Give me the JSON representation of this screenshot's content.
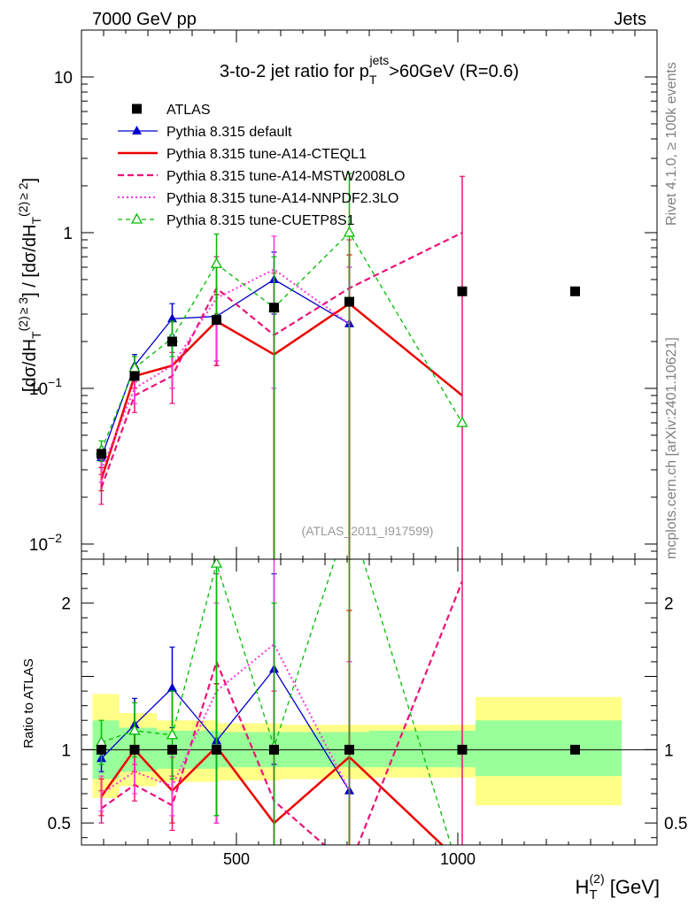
{
  "header": {
    "left": "7000 GeV pp",
    "right": "Jets"
  },
  "side_text": {
    "rivet": "Rivet 4.1.0, ≥ 100k events",
    "source": "mcplots.cern.ch [arXiv:2401.10621]"
  },
  "chart_data": {
    "type": "line",
    "title_parts": {
      "prefix": "3-to-2 jet ratio for p",
      "sub": "T",
      "sup": "jets",
      "suffix": ">60GeV (R=0.6)"
    },
    "watermark": "(ATLAS_2011_I917599)",
    "ylabel_parts": [
      "[dσ/dH",
      "T",
      "(2)",
      "≥ 3",
      "] / [dσ/dH",
      "T",
      "(2)",
      "≥ 2",
      "]"
    ],
    "xlabel_parts": {
      "main": "H",
      "sub": "T",
      "sup": "(2)",
      "unit": " [GeV]"
    },
    "ratio_ylabel": "Ratio to ATLAS",
    "xlim": [
      150,
      1450
    ],
    "ylim_main": [
      0.008,
      20
    ],
    "ylim_ratio": [
      0.35,
      2.3
    ],
    "x_major_ticks": [
      {
        "v": 500,
        "label": "500"
      },
      {
        "v": 1000,
        "label": "1000"
      }
    ],
    "y_main_ticks": [
      {
        "v": 0.01,
        "base": "10",
        "exp": "−2"
      },
      {
        "v": 0.1,
        "base": "10",
        "exp": "−1"
      },
      {
        "v": 1,
        "base": "1",
        "exp": ""
      },
      {
        "v": 10,
        "base": "10",
        "exp": ""
      }
    ],
    "y_ratio_ticks": [
      {
        "v": 0.5,
        "label": "0.5"
      },
      {
        "v": 1,
        "label": "1"
      },
      {
        "v": 2,
        "label": "2"
      }
    ],
    "bands": [
      {
        "x0": 175,
        "x1": 235,
        "y1": [
          0.8,
          1.2
        ],
        "y2": [
          0.67,
          1.38
        ]
      },
      {
        "x0": 235,
        "x1": 320,
        "y1": [
          0.85,
          1.15
        ],
        "y2": [
          0.75,
          1.25
        ]
      },
      {
        "x0": 320,
        "x1": 460,
        "y1": [
          0.87,
          1.13
        ],
        "y2": [
          0.78,
          1.2
        ]
      },
      {
        "x0": 460,
        "x1": 600,
        "y1": [
          0.88,
          1.12
        ],
        "y2": [
          0.79,
          1.18
        ]
      },
      {
        "x0": 600,
        "x1": 800,
        "y1": [
          0.88,
          1.12
        ],
        "y2": [
          0.8,
          1.17
        ]
      },
      {
        "x0": 800,
        "x1": 1040,
        "y1": [
          0.88,
          1.13
        ],
        "y2": [
          0.81,
          1.17
        ]
      },
      {
        "x0": 1040,
        "x1": 1370,
        "y1": [
          0.82,
          1.2
        ],
        "y2": [
          0.62,
          1.36
        ]
      }
    ],
    "series": [
      {
        "name": "ATLAS",
        "color": "#000000",
        "line": "none",
        "marker": "square",
        "x": [
          195,
          270,
          355,
          455,
          585,
          755,
          1010,
          1265
        ],
        "values": [
          0.038,
          0.12,
          0.2,
          0.275,
          0.33,
          0.36,
          0.42,
          0.42
        ],
        "ratio": [
          1,
          1,
          1,
          1,
          1,
          1,
          1,
          1
        ]
      },
      {
        "name": "Pythia 8.315 default",
        "color": "#0000cc",
        "line": "solid",
        "marker": "triangle",
        "x": [
          195,
          270,
          355,
          455,
          585,
          755
        ],
        "values": [
          0.036,
          0.14,
          0.28,
          0.29,
          0.5,
          0.26
        ],
        "err": [
          [
            0.031,
            0.041
          ],
          [
            0.12,
            0.165
          ],
          [
            0.22,
            0.35
          ],
          [
            0.15,
            0.4
          ],
          [
            0.3,
            0.75
          ],
          [
            0.004,
            0.6
          ]
        ],
        "ratio": [
          0.94,
          1.17,
          1.42,
          1.06,
          1.55,
          0.72
        ],
        "ratio_err": [
          [
            0.85,
            1.05
          ],
          [
            1.02,
            1.35
          ],
          [
            1.15,
            1.7
          ],
          [
            0.55,
            1.45
          ],
          [
            0.9,
            2.2
          ],
          [
            0.1,
            1.6
          ]
        ]
      },
      {
        "name": "Pythia 8.315 tune-A14-CTEQL1",
        "color": "#ee0000",
        "line": "solid-thick",
        "marker": "none",
        "x": [
          195,
          270,
          355,
          455,
          585,
          755,
          1010
        ],
        "values": [
          0.026,
          0.12,
          0.14,
          0.27,
          0.165,
          0.35,
          0.09
        ],
        "err": [
          [
            0.022,
            0.031
          ],
          [
            0.1,
            0.14
          ],
          [
            0.1,
            0.2
          ],
          [
            0.14,
            0.4
          ],
          [
            0.001,
            0.35
          ],
          [
            0.001,
            0.72
          ],
          null
        ],
        "ratio": [
          0.68,
          1.0,
          0.72,
          1.02,
          0.5,
          0.95,
          0.22
        ],
        "ratio_err": [
          [
            0.55,
            0.8
          ],
          [
            0.85,
            1.15
          ],
          [
            0.5,
            0.95
          ],
          [
            0.5,
            1.45
          ],
          [
            0.1,
            1.0
          ],
          [
            0.1,
            1.95
          ],
          null
        ]
      },
      {
        "name": "Pythia 8.315 tune-A14-MSTW2008LO",
        "color": "#ee1177",
        "line": "dashed",
        "marker": "none",
        "x": [
          195,
          270,
          355,
          455,
          585,
          755,
          1010
        ],
        "values": [
          0.023,
          0.09,
          0.12,
          0.44,
          0.22,
          0.44,
          1.0
        ],
        "err": [
          [
            0.018,
            0.028
          ],
          [
            0.07,
            0.11
          ],
          [
            0.08,
            0.17
          ],
          [
            0.14,
            0.7
          ],
          [
            0.001,
            0.55
          ],
          [
            0.001,
            0.9
          ],
          [
            0.001,
            2.3
          ]
        ],
        "ratio": [
          0.6,
          0.76,
          0.62,
          1.6,
          0.65,
          0.2,
          2.15
        ],
        "ratio_err": [
          [
            0.5,
            0.72
          ],
          [
            0.65,
            0.9
          ],
          [
            0.45,
            0.82
          ],
          [
            0.5,
            2.2
          ],
          [
            0.1,
            1.4
          ],
          [
            0.1,
            2.3
          ],
          [
            0.1,
            2.3
          ]
        ]
      },
      {
        "name": "Pythia 8.315 tune-A14-NNPDF2.3LO",
        "color": "#ff33dd",
        "line": "dotted",
        "marker": "none",
        "x": [
          195,
          270,
          355,
          455,
          585,
          755
        ],
        "values": [
          0.03,
          0.1,
          0.14,
          0.38,
          0.58,
          0.26
        ],
        "err": [
          [
            0.025,
            0.035
          ],
          [
            0.08,
            0.12
          ],
          [
            0.1,
            0.19
          ],
          [
            0.15,
            0.6
          ],
          [
            0.1,
            0.95
          ],
          [
            0.001,
            0.6
          ]
        ],
        "ratio": [
          0.7,
          0.85,
          0.75,
          1.4,
          1.72,
          0.72
        ],
        "ratio_err": [
          [
            0.58,
            0.82
          ],
          [
            0.7,
            1.0
          ],
          [
            0.55,
            0.95
          ],
          [
            0.5,
            2.0
          ],
          [
            0.3,
            2.3
          ],
          [
            0.1,
            1.6
          ]
        ]
      },
      {
        "name": "Pythia 8.315 tune-CUETP8S1",
        "color": "#00bb00",
        "line": "dashed-thin",
        "marker": "triangle-open",
        "x": [
          195,
          270,
          355,
          455,
          585,
          755,
          1010
        ],
        "values": [
          0.04,
          0.135,
          0.21,
          0.63,
          0.33,
          1.0,
          0.06
        ],
        "err": [
          [
            0.034,
            0.046
          ],
          [
            0.115,
            0.16
          ],
          [
            0.16,
            0.27
          ],
          [
            0.3,
            0.98
          ],
          [
            0.001,
            0.7
          ],
          [
            0.001,
            2.4
          ],
          null
        ],
        "ratio": [
          1.05,
          1.13,
          1.1,
          2.27,
          1.02,
          2.6,
          0.1
        ],
        "ratio_err": [
          [
            0.9,
            1.2
          ],
          [
            0.95,
            1.32
          ],
          [
            0.8,
            1.4
          ],
          [
            0.55,
            2.3
          ],
          [
            0.1,
            2.0
          ],
          [
            0.1,
            2.3
          ],
          null
        ]
      }
    ]
  }
}
